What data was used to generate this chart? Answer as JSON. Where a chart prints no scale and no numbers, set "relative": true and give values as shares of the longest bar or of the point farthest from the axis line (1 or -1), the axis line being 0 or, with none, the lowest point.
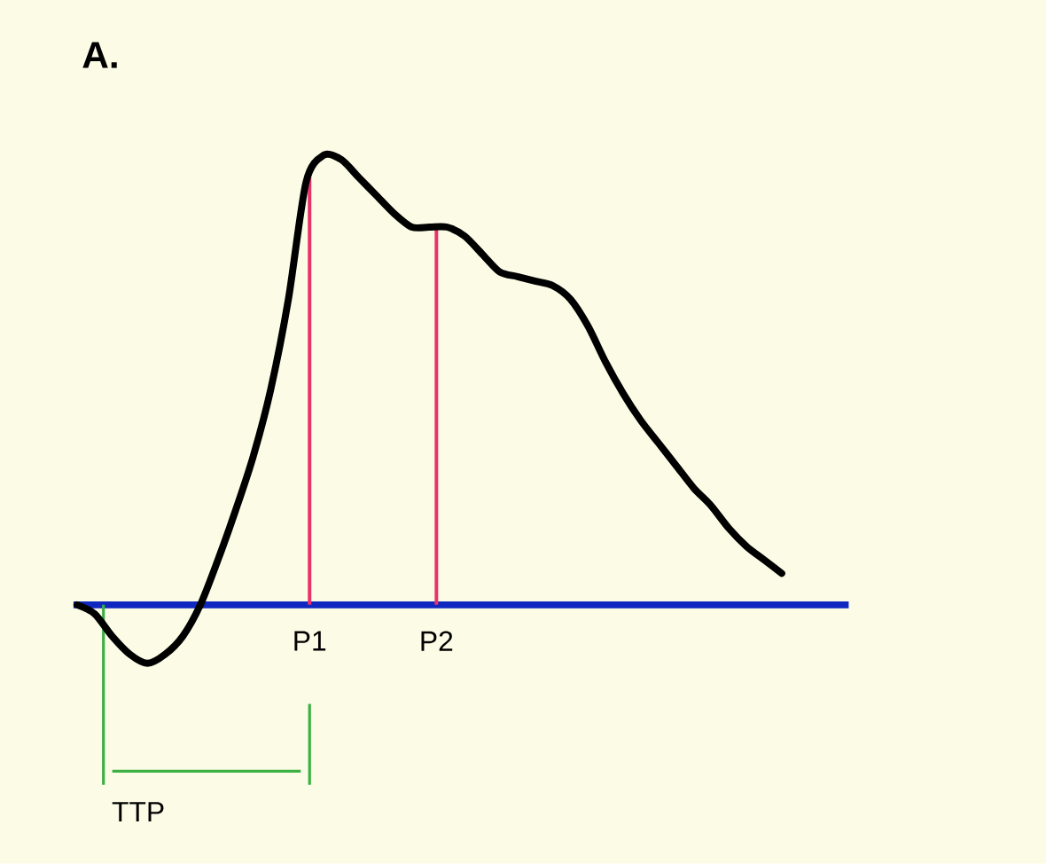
{
  "chart_data": {
    "type": "line",
    "title": "A.",
    "relative": true,
    "color": "#000000",
    "categories": [
      null,
      null,
      null,
      null,
      null,
      null,
      null,
      null,
      null,
      null,
      null,
      null,
      null,
      null,
      null,
      null,
      null,
      null,
      null,
      null,
      null,
      null,
      null,
      null,
      null,
      null,
      null,
      null,
      null,
      null,
      null,
      null,
      null,
      null,
      null,
      null,
      null,
      null,
      null,
      null,
      null
    ],
    "values": [
      0,
      -0.02,
      -0.07,
      -0.11,
      -0.13,
      -0.11,
      -0.07,
      0.0,
      0.1,
      0.21,
      0.33,
      0.48,
      0.68,
      0.94,
      1,
      0.99,
      0.95,
      0.91,
      0.87,
      0.84,
      0.84,
      0.84,
      0.82,
      0.78,
      0.74,
      0.73,
      0.72,
      0.71,
      0.68,
      0.62,
      0.54,
      0.47,
      0.41,
      0.36,
      0.31,
      0.26,
      0.22,
      0.17,
      0.13,
      0.1,
      0.07
    ],
    "ref_lines": [
      {
        "axis": "y",
        "value": 0,
        "color": "#1028c0"
      }
    ],
    "annotations": [
      "P1",
      "P2",
      "TTP"
    ]
  }
}
